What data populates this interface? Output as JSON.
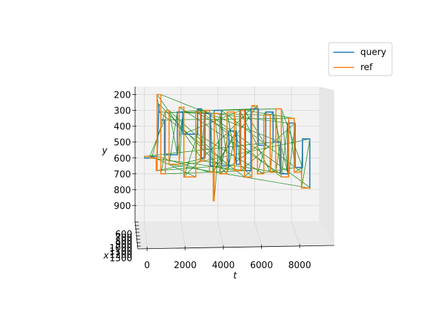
{
  "chart_data": {
    "type": "line",
    "projection": "3d",
    "xlabel": "t",
    "ylabel": "y",
    "zlabel": "x",
    "t_ticks": [
      "0",
      "2000",
      "4000",
      "6000",
      "8000"
    ],
    "y_ticks": [
      "200",
      "300",
      "400",
      "500",
      "600",
      "700",
      "800",
      "900"
    ],
    "x_ticks": [
      "600",
      "700",
      "800",
      "900",
      "1000",
      "1100",
      "1200",
      "1300"
    ],
    "t_range": [
      -500,
      9500
    ],
    "y_range": [
      1000,
      150
    ],
    "legend": {
      "placement": "top-right",
      "entries": [
        {
          "name": "query",
          "color": "#1f77b4"
        },
        {
          "name": "ref",
          "color": "#ff7f0e"
        }
      ]
    },
    "alignment_color": "#008000",
    "grid": true,
    "series": [
      {
        "name": "query",
        "color": "#1f77b4",
        "t": [
          0,
          400,
          400,
          700,
          800,
          800,
          900,
          900,
          1100,
          1100,
          1800,
          1800,
          2100,
          2100,
          2900,
          2900,
          3100,
          3100,
          3300,
          3300,
          3600,
          3600,
          3800,
          3800,
          4200,
          4200,
          4600,
          4600,
          5000,
          5000,
          5200,
          5200,
          5500,
          5500,
          5800,
          5800,
          6200,
          6200,
          6600,
          6600,
          7000,
          7000,
          7400,
          7400,
          7800,
          7800,
          8200,
          8200,
          8600,
          8600,
          9000,
          9000
        ],
        "y": [
          600,
          600,
          590,
          590,
          260,
          310,
          310,
          360,
          360,
          580,
          580,
          310,
          310,
          450,
          450,
          290,
          290,
          600,
          600,
          320,
          320,
          650,
          650,
          300,
          300,
          650,
          650,
          430,
          430,
          640,
          640,
          300,
          300,
          680,
          680,
          290,
          290,
          520,
          520,
          310,
          310,
          500,
          500,
          700,
          700,
          380,
          380,
          660,
          660,
          480,
          480,
          790
        ]
      },
      {
        "name": "ref",
        "color": "#ff7f0e",
        "t": [
          0,
          300,
          300,
          650,
          650,
          700,
          700,
          900,
          900,
          1150,
          1150,
          1350,
          1350,
          1900,
          1900,
          2150,
          2150,
          2800,
          2800,
          3050,
          3050,
          3250,
          3250,
          3550,
          3550,
          3750,
          3750,
          3800,
          3800,
          4100,
          4100,
          4500,
          4500,
          4900,
          4900,
          5250,
          5250,
          5450,
          5450,
          5850,
          5850,
          6150,
          6150,
          6500,
          6500,
          6850,
          6850,
          7150,
          7150,
          7450,
          7450,
          7850,
          7850,
          8150,
          8150,
          8550,
          8550,
          9050
        ],
        "y": [
          590,
          590,
          600,
          600,
          680,
          680,
          200,
          200,
          700,
          700,
          300,
          300,
          640,
          640,
          280,
          280,
          720,
          720,
          310,
          310,
          620,
          620,
          300,
          300,
          690,
          690,
          870,
          870,
          320,
          320,
          700,
          700,
          310,
          310,
          680,
          680,
          300,
          300,
          720,
          720,
          270,
          270,
          700,
          700,
          330,
          330,
          690,
          690,
          290,
          290,
          720,
          720,
          350,
          350,
          690,
          690,
          790,
          790
        ]
      }
    ]
  }
}
